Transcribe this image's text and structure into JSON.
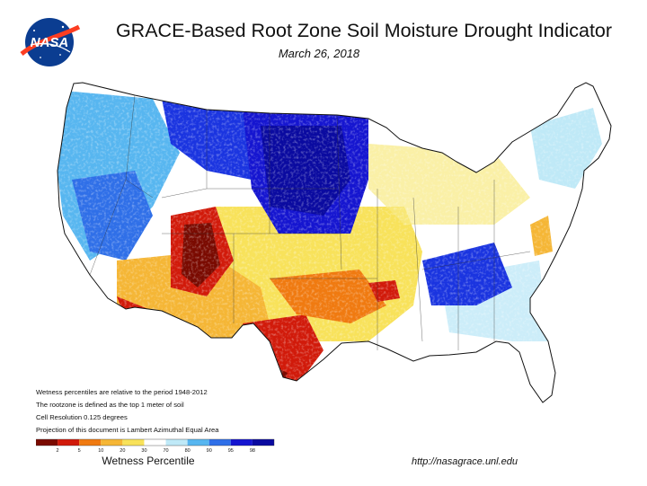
{
  "header": {
    "title": "GRACE-Based Root Zone Soil  Moisture Drought Indicator",
    "date": "March 26, 2018",
    "logo_text": "NASA"
  },
  "notes": [
    "Wetness percentiles are relative to the period 1948-2012",
    "The rootzone is defined as the top 1 meter of soil",
    "Cell Resolution 0.125 degrees",
    "Projection of this document is Lambert Azimuthal Equal Area"
  ],
  "legend": {
    "title": "Wetness Percentile",
    "ticks": [
      "2",
      "5",
      "10",
      "20",
      "30",
      "70",
      "80",
      "90",
      "95",
      "98"
    ],
    "colors": [
      "#7a0a00",
      "#d11a0a",
      "#f07a10",
      "#f5b635",
      "#f8e25a",
      "#ffffff",
      "#bfe9f7",
      "#57b6f0",
      "#2f6fe8",
      "#1515d0",
      "#0a0aa0"
    ]
  },
  "footer": {
    "url": "http://nasagrace.unl.edu"
  },
  "map_regions": [
    {
      "name": "pacific-northwest",
      "category": "wet"
    },
    {
      "name": "northern-rockies",
      "category": "very-wet"
    },
    {
      "name": "northern-plains",
      "category": "very-wet"
    },
    {
      "name": "four-corners",
      "category": "very-dry"
    },
    {
      "name": "arizona",
      "category": "very-dry"
    },
    {
      "name": "texas",
      "category": "very-dry"
    },
    {
      "name": "southern-plains",
      "category": "dry"
    },
    {
      "name": "ohio-valley",
      "category": "very-wet"
    },
    {
      "name": "great-lakes",
      "category": "wet"
    },
    {
      "name": "southeast",
      "category": "moist"
    },
    {
      "name": "northeast",
      "category": "mixed"
    }
  ]
}
